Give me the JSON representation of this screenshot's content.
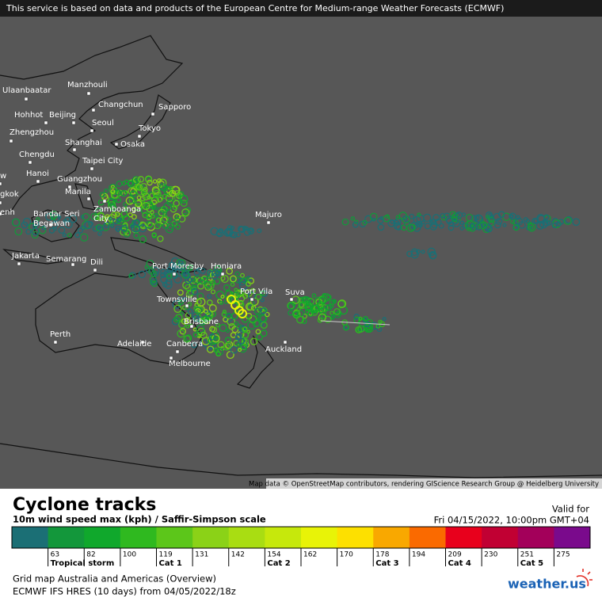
{
  "notice": "This service is based on data and products of the European Centre for Medium-range Weather Forecasts (ECMWF)",
  "map": {
    "cities": [
      {
        "lines": [
          "Ulaanbaatar"
        ]
      },
      {
        "lines": [
          "Manzhouli"
        ]
      },
      {
        "lines": [
          "Hohhot"
        ]
      },
      {
        "lines": [
          "Beijing"
        ]
      },
      {
        "lines": [
          "Changchun"
        ]
      },
      {
        "lines": [
          "Sapporo"
        ]
      },
      {
        "lines": [
          "Seoul"
        ]
      },
      {
        "lines": [
          "Zhengzhou"
        ]
      },
      {
        "lines": [
          "Tokyo"
        ]
      },
      {
        "lines": [
          "Shanghai"
        ]
      },
      {
        "lines": [
          "Osaka"
        ]
      },
      {
        "lines": [
          "Chengdu"
        ]
      },
      {
        "lines": [
          "Taipei City"
        ]
      },
      {
        "lines": [
          "w"
        ]
      },
      {
        "lines": [
          "Hanoi"
        ]
      },
      {
        "lines": [
          "Guangzhou"
        ]
      },
      {
        "lines": [
          "gkok"
        ]
      },
      {
        "lines": [
          "Manila"
        ]
      },
      {
        "lines": [
          "enh"
        ]
      },
      {
        "lines": [
          "Zamboanga",
          "City"
        ]
      },
      {
        "lines": [
          "Bandar Seri",
          "Begawan"
        ]
      },
      {
        "lines": [
          "Majuro"
        ]
      },
      {
        "lines": [
          "Jakarta"
        ]
      },
      {
        "lines": [
          "Semarang"
        ]
      },
      {
        "lines": [
          "Dili"
        ]
      },
      {
        "lines": [
          "Port Moresby"
        ]
      },
      {
        "lines": [
          "Honiara"
        ]
      },
      {
        "lines": [
          "Port Vila"
        ]
      },
      {
        "lines": [
          "Suva"
        ]
      },
      {
        "lines": [
          "Townsville"
        ]
      },
      {
        "lines": [
          "Brisbane"
        ]
      },
      {
        "lines": [
          "Perth"
        ]
      },
      {
        "lines": [
          "Adelaide"
        ]
      },
      {
        "lines": [
          "Canberra"
        ]
      },
      {
        "lines": [
          "Auckland"
        ]
      },
      {
        "lines": [
          "Melbourne"
        ]
      }
    ],
    "attribution": "Map data © OpenStreetMap contributors, rendering GIScience Research Group @ Heidelberg University"
  },
  "legend": {
    "title": "Cyclone tracks",
    "subtitle": "10m wind speed max (kph) / Saffir-Simpson scale",
    "valid_label": "Valid for",
    "valid_time": "Fri 04/15/2022, 10:00pm GMT+04",
    "colors": [
      "#1b6f75",
      "#13973b",
      "#10a82c",
      "#2fb91f",
      "#5cc61a",
      "#8bd217",
      "#a9dd12",
      "#c6e80c",
      "#e8f307",
      "#fbf700",
      "#fde000",
      "#f9a800",
      "#fa6a00",
      "#e8001c",
      "#c10033",
      "#a3005a",
      "#7a0a8c"
    ],
    "ticks": [
      63,
      82,
      100,
      119,
      131,
      142,
      154,
      162,
      170,
      178,
      194,
      209,
      230,
      251,
      275
    ],
    "categories": [
      "Tropical storm",
      "Cat 1",
      "Cat 2",
      "Cat 3",
      "Cat 4",
      "Cat 5"
    ],
    "grid_name": "Grid map Australia and Americas (Overview)",
    "model": "ECMWF IFS HRES (10 days) from  04/05/2022/18z",
    "logo": "weather.us"
  }
}
